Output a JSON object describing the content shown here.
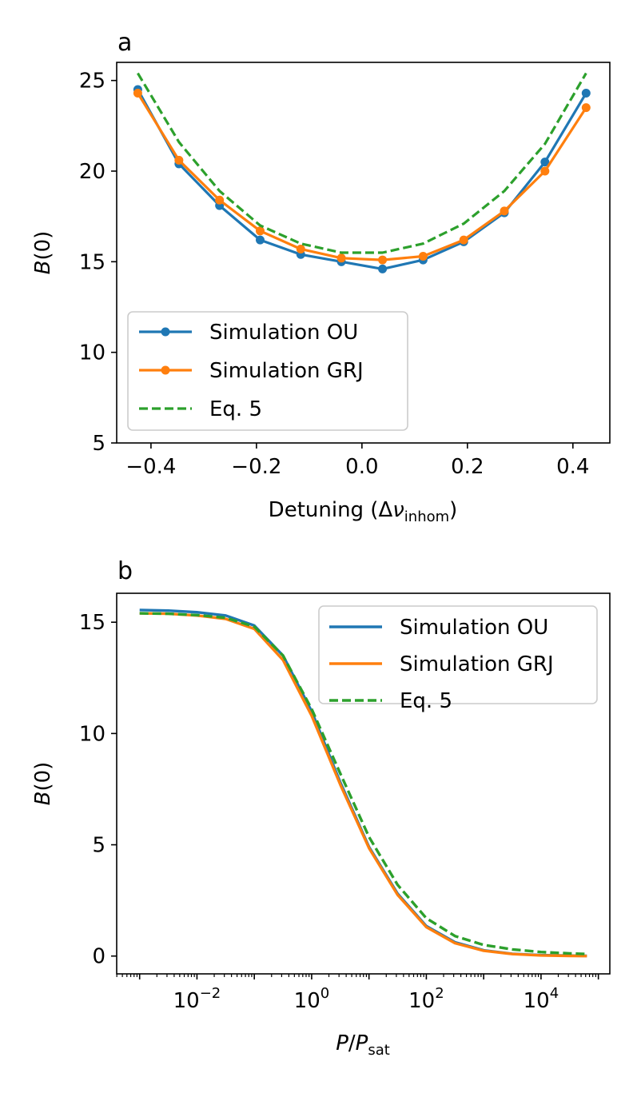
{
  "colors": {
    "ou": "#1f77b4",
    "grj": "#ff7f0e",
    "eq5": "#2ca02c",
    "axis": "#000000",
    "legend_border": "#cccccc"
  },
  "chart_data": [
    {
      "panel_label": "a",
      "type": "line",
      "xlabel_main": "Detuning (Δ",
      "xlabel_nu": "ν",
      "xlabel_sub": "inhom",
      "xlabel_close": ")",
      "ylabel_main": "B",
      "ylabel_rest": "(0)",
      "xlim": [
        -0.465,
        0.47
      ],
      "ylim": [
        5,
        26
      ],
      "xticks": [
        -0.4,
        -0.2,
        0.0,
        0.2,
        0.4
      ],
      "xtick_labels": [
        "−0.4",
        "−0.2",
        "0.0",
        "0.2",
        "0.4"
      ],
      "yticks": [
        5,
        10,
        15,
        20,
        25
      ],
      "ytick_labels": [
        "5",
        "10",
        "15",
        "20",
        "25"
      ],
      "legend_position": "lower-left",
      "x": [
        -0.425,
        -0.347,
        -0.27,
        -0.193,
        -0.116,
        -0.039,
        0.039,
        0.116,
        0.193,
        0.27,
        0.347,
        0.425
      ],
      "series": [
        {
          "name": "Simulation OU",
          "key": "ou",
          "style": "line-marker",
          "values": [
            24.5,
            20.4,
            18.1,
            16.2,
            15.4,
            15.0,
            14.6,
            15.1,
            16.1,
            17.7,
            20.5,
            24.3
          ]
        },
        {
          "name": "Simulation GRJ",
          "key": "grj",
          "style": "line-marker",
          "values": [
            24.3,
            20.6,
            18.4,
            16.7,
            15.7,
            15.2,
            15.1,
            15.3,
            16.2,
            17.8,
            20.0,
            23.5
          ]
        },
        {
          "name": "Eq. 5",
          "key": "eq5",
          "style": "dashed",
          "values": [
            25.4,
            21.6,
            18.9,
            17.0,
            16.0,
            15.5,
            15.5,
            16.0,
            17.1,
            18.9,
            21.5,
            25.4
          ]
        }
      ]
    },
    {
      "panel_label": "b",
      "type": "line",
      "xscale": "log",
      "xlabel_main": "P",
      "xlabel_slash": "/",
      "xlabel_p2": "P",
      "xlabel_sub": "sat",
      "ylabel_main": "B",
      "ylabel_rest": "(0)",
      "xlim_log10": [
        -3.4,
        5.2
      ],
      "ylim": [
        -0.8,
        16.3
      ],
      "xticks_log10": [
        -2,
        0,
        2,
        4
      ],
      "xtick_bases": [
        "10",
        "10",
        "10",
        "10"
      ],
      "xtick_exponents": [
        "−2",
        "0",
        "2",
        "4"
      ],
      "yticks": [
        0,
        5,
        10,
        15
      ],
      "ytick_labels": [
        "0",
        "5",
        "10",
        "15"
      ],
      "legend_position": "upper-right",
      "x_log10": [
        -3.0,
        -2.5,
        -2.0,
        -1.5,
        -1.0,
        -0.5,
        0.0,
        0.5,
        1.0,
        1.5,
        2.0,
        2.5,
        3.0,
        3.5,
        4.0,
        4.5,
        4.8
      ],
      "series": [
        {
          "name": "Simulation OU",
          "key": "ou",
          "style": "solid",
          "values": [
            15.55,
            15.52,
            15.45,
            15.3,
            14.85,
            13.5,
            11.0,
            7.8,
            4.9,
            2.8,
            1.35,
            0.62,
            0.26,
            0.1,
            0.04,
            0.02,
            0.01
          ]
        },
        {
          "name": "Simulation GRJ",
          "key": "grj",
          "style": "solid",
          "values": [
            15.4,
            15.38,
            15.3,
            15.15,
            14.7,
            13.3,
            10.8,
            7.7,
            4.85,
            2.75,
            1.3,
            0.58,
            0.24,
            0.09,
            0.03,
            0.01,
            0.0
          ]
        },
        {
          "name": "Eq. 5",
          "key": "eq5",
          "style": "dashed",
          "values": [
            15.4,
            15.38,
            15.32,
            15.2,
            14.8,
            13.5,
            11.1,
            8.2,
            5.35,
            3.2,
            1.7,
            0.9,
            0.5,
            0.3,
            0.18,
            0.12,
            0.09
          ]
        }
      ]
    }
  ]
}
